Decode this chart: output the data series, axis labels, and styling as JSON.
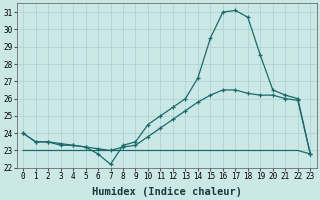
{
  "xlabel": "Humidex (Indice chaleur)",
  "x": [
    0,
    1,
    2,
    3,
    4,
    5,
    6,
    7,
    8,
    9,
    10,
    11,
    12,
    13,
    14,
    15,
    16,
    17,
    18,
    19,
    20,
    21,
    22,
    23
  ],
  "line1_y": [
    24.0,
    23.5,
    23.5,
    23.3,
    23.3,
    23.2,
    22.8,
    22.2,
    23.3,
    23.5,
    24.5,
    25.0,
    25.5,
    26.0,
    27.2,
    29.5,
    31.0,
    31.1,
    30.7,
    28.5,
    26.5,
    26.2,
    26.0,
    22.8
  ],
  "line2_y": [
    24.0,
    23.5,
    23.5,
    23.4,
    23.3,
    23.2,
    23.1,
    23.0,
    23.2,
    23.3,
    23.8,
    24.3,
    24.8,
    25.3,
    25.8,
    26.2,
    26.5,
    26.5,
    26.3,
    26.2,
    26.2,
    26.0,
    25.9,
    22.8
  ],
  "line3_y": [
    23.0,
    23.0,
    23.0,
    23.0,
    23.0,
    23.0,
    23.0,
    23.0,
    23.0,
    23.0,
    23.0,
    23.0,
    23.0,
    23.0,
    23.0,
    23.0,
    23.0,
    23.0,
    23.0,
    23.0,
    23.0,
    23.0,
    23.0,
    22.8
  ],
  "ylim": [
    22.0,
    31.5
  ],
  "xlim": [
    -0.5,
    23.5
  ],
  "bg_color": "#cce8e6",
  "grid_color": "#aacfcd",
  "line_color": "#1a6b6b",
  "tick_fontsize": 5.5,
  "label_fontsize": 7.5
}
